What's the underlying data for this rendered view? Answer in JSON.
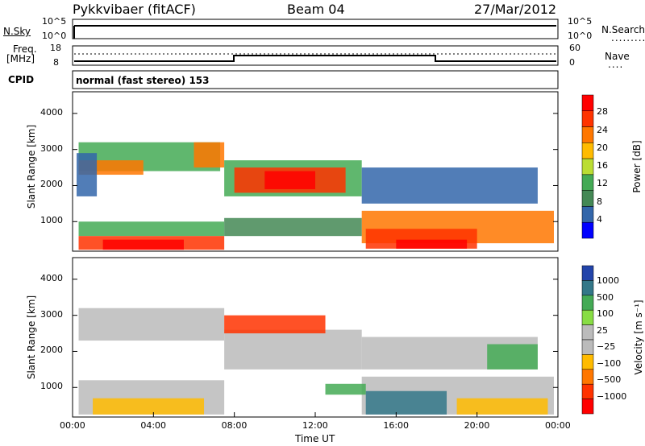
{
  "header": {
    "station": "Pykkvibaer (fitACF)",
    "beam": "Beam 04",
    "date": "27/Mar/2012"
  },
  "top_panels": {
    "nsky_label": "N.Sky",
    "nsky_top_tick": "10^5",
    "nsky_bottom_tick": "10^0",
    "nsearch_label": "N.Search",
    "nsearch_top_tick": "10^5",
    "nsearch_bottom_tick": "10^0",
    "freq_label": "Freq.",
    "freq_unit": "[MHz]",
    "freq_top_tick": "18",
    "freq_bottom_tick": "8",
    "nave_label": "Nave",
    "nave_top_tick": "60",
    "nave_bottom_tick": "0",
    "cpid_label": "CPID",
    "cpid_value": "normal (fast stereo) 153"
  },
  "chart_data": [
    {
      "type": "heatmap",
      "name": "power",
      "ylabel": "Slant Range [km]",
      "yticks": [
        "1000",
        "2000",
        "3000",
        "4000"
      ],
      "ylim": [
        180,
        4600
      ],
      "xlim": [
        0,
        24
      ],
      "colorbar_label": "Power [dB]",
      "colorbar_ticks": [
        "28",
        "24",
        "20",
        "16",
        "12",
        "8",
        "4"
      ],
      "colorbar_colors": [
        "#ff0000",
        "#ff3300",
        "#ff7700",
        "#ffbb00",
        "#bbdd33",
        "#44aa55",
        "#448855",
        "#3366aa",
        "#0000ff"
      ],
      "regions": [
        {
          "x0": 0.3,
          "x1": 7.3,
          "y0": 2400,
          "y1": 3200,
          "c": "#44aa55"
        },
        {
          "x0": 0.3,
          "x1": 3.5,
          "y0": 2300,
          "y1": 2700,
          "c": "#ff7700"
        },
        {
          "x0": 6.0,
          "x1": 7.5,
          "y0": 2500,
          "y1": 3200,
          "c": "#ff7700"
        },
        {
          "x0": 7.5,
          "x1": 14.3,
          "y0": 1700,
          "y1": 2700,
          "c": "#44aa55"
        },
        {
          "x0": 8.0,
          "x1": 13.5,
          "y0": 1800,
          "y1": 2500,
          "c": "#ff3300"
        },
        {
          "x0": 9.5,
          "x1": 12.0,
          "y0": 1900,
          "y1": 2400,
          "c": "#ff0000"
        },
        {
          "x0": 0.3,
          "x1": 7.5,
          "y0": 600,
          "y1": 1000,
          "c": "#44aa55"
        },
        {
          "x0": 0.3,
          "x1": 7.5,
          "y0": 220,
          "y1": 600,
          "c": "#ff3300"
        },
        {
          "x0": 1.5,
          "x1": 5.5,
          "y0": 220,
          "y1": 500,
          "c": "#ff0000"
        },
        {
          "x0": 14.3,
          "x1": 23.8,
          "y0": 400,
          "y1": 1300,
          "c": "#ff7700"
        },
        {
          "x0": 14.5,
          "x1": 20.0,
          "y0": 250,
          "y1": 800,
          "c": "#ff3300"
        },
        {
          "x0": 16.0,
          "x1": 19.5,
          "y0": 250,
          "y1": 500,
          "c": "#ff0000"
        },
        {
          "x0": 14.3,
          "x1": 23.0,
          "y0": 1500,
          "y1": 2500,
          "c": "#3366aa"
        },
        {
          "x0": 7.5,
          "x1": 14.3,
          "y0": 600,
          "y1": 1100,
          "c": "#448855"
        },
        {
          "x0": 0.2,
          "x1": 1.2,
          "y0": 1700,
          "y1": 2900,
          "c": "#3366aa"
        }
      ]
    },
    {
      "type": "heatmap",
      "name": "velocity",
      "ylabel": "Slant Range [km]",
      "yticks": [
        "1000",
        "2000",
        "3000",
        "4000"
      ],
      "ylim": [
        180,
        4600
      ],
      "xlim": [
        0,
        24
      ],
      "xlabel": "Time UT",
      "xticks": [
        "00:00",
        "04:00",
        "08:00",
        "12:00",
        "16:00",
        "20:00",
        "00:00"
      ],
      "colorbar_label": "Velocity [m s⁻¹]",
      "colorbar_ticks": [
        "1000",
        "500",
        "100",
        "25",
        "−25",
        "−100",
        "−500",
        "−1000"
      ],
      "colorbar_colors": [
        "#2244aa",
        "#337788",
        "#44aa55",
        "#88dd44",
        "#bbbbbb",
        "#bbbbbb",
        "#ffbb00",
        "#ff7700",
        "#ff3300",
        "#ff0000"
      ],
      "regions": [
        {
          "x0": 0.3,
          "x1": 7.5,
          "y0": 2300,
          "y1": 3200,
          "c": "#bbbbbb"
        },
        {
          "x0": 7.5,
          "x1": 14.3,
          "y0": 1500,
          "y1": 2600,
          "c": "#bbbbbb"
        },
        {
          "x0": 0.3,
          "x1": 7.5,
          "y0": 250,
          "y1": 1200,
          "c": "#bbbbbb"
        },
        {
          "x0": 1.0,
          "x1": 6.5,
          "y0": 250,
          "y1": 700,
          "c": "#ffbb00"
        },
        {
          "x0": 7.5,
          "x1": 12.5,
          "y0": 2500,
          "y1": 3000,
          "c": "#ff3300"
        },
        {
          "x0": 14.3,
          "x1": 23.8,
          "y0": 250,
          "y1": 1300,
          "c": "#bbbbbb"
        },
        {
          "x0": 14.5,
          "x1": 18.5,
          "y0": 250,
          "y1": 900,
          "c": "#337788"
        },
        {
          "x0": 19.0,
          "x1": 23.5,
          "y0": 250,
          "y1": 700,
          "c": "#ffbb00"
        },
        {
          "x0": 14.3,
          "x1": 23.0,
          "y0": 1500,
          "y1": 2400,
          "c": "#bbbbbb"
        },
        {
          "x0": 12.5,
          "x1": 14.5,
          "y0": 800,
          "y1": 1100,
          "c": "#44aa55"
        },
        {
          "x0": 20.5,
          "x1": 23.0,
          "y0": 1500,
          "y1": 2200,
          "c": "#44aa55"
        }
      ]
    }
  ]
}
